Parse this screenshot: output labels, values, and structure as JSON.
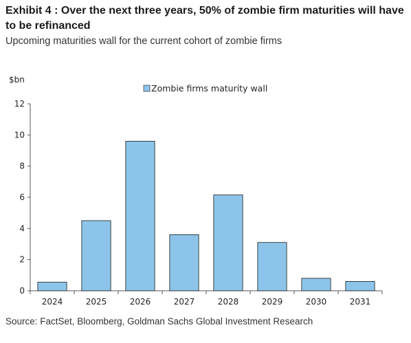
{
  "header": {
    "title": "Exhibit 4 : Over the next three years, 50% of zombie firm maturities will have to be refinanced",
    "subtitle": "Upcoming maturities wall for the current cohort of zombie firms"
  },
  "footer": {
    "source": "Source: FactSet, Bloomberg, Goldman Sachs Global Investment Research"
  },
  "chart_data": {
    "type": "bar",
    "title": "Exhibit 4 : Over the next three years, 50% of zombie firm maturities will have to be refinanced",
    "subtitle": "Upcoming maturities wall for the current cohort of zombie firms",
    "xlabel": "",
    "ylabel": "$bn",
    "categories": [
      "2024",
      "2025",
      "2026",
      "2027",
      "2028",
      "2029",
      "2030",
      "2031"
    ],
    "series": [
      {
        "name": "Zombie firms maturity wall",
        "values": [
          0.55,
          4.5,
          9.6,
          3.6,
          6.15,
          3.1,
          0.8,
          0.6
        ]
      }
    ],
    "ylim": [
      0,
      12
    ],
    "yticks": [
      0,
      2,
      4,
      6,
      8,
      10,
      12
    ],
    "grid": false,
    "legend_position": "top-center",
    "bar_color": "#8dc4ea",
    "bar_edge_color": "#1a1a1a"
  }
}
